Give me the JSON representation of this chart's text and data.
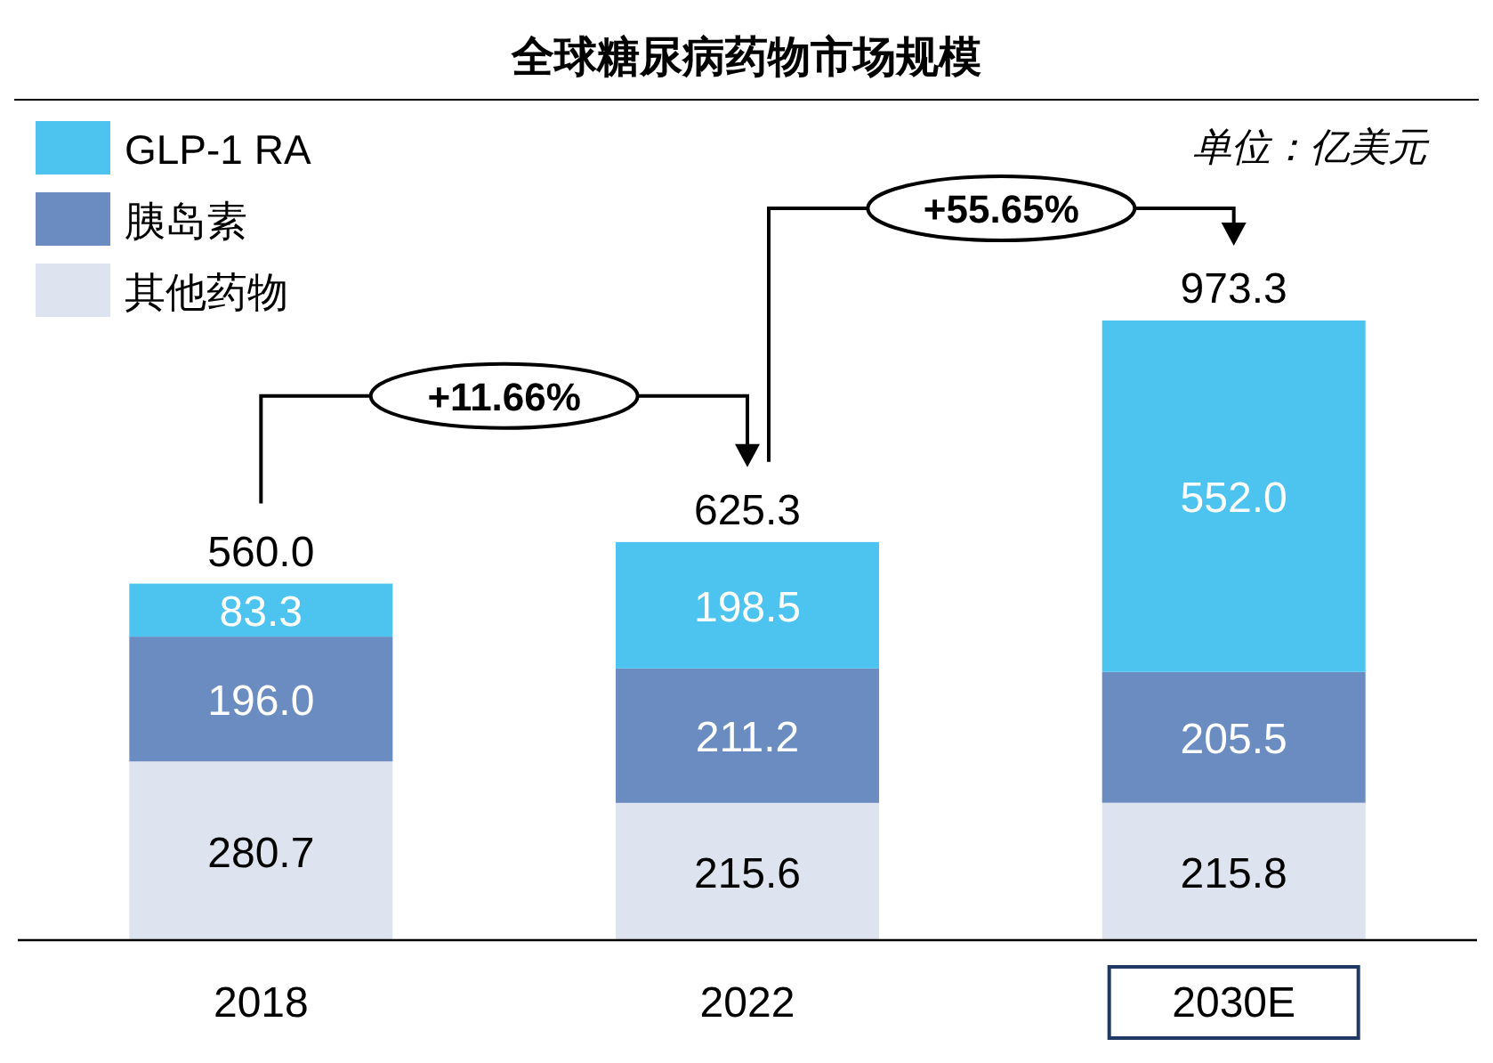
{
  "chart_data": {
    "type": "bar",
    "title": "全球糖尿病药物市场规模",
    "stacked": true,
    "legend": "top left",
    "categories": [
      "2018",
      "2022",
      "2030E"
    ],
    "series": [
      {
        "name": "其他药物",
        "color": "#dde3ef",
        "values": [
          280.7,
          215.6,
          215.8
        ],
        "value_labels": [
          "280.7",
          "215.6",
          "215.8"
        ]
      },
      {
        "name": "胰岛素",
        "color": "#6a8cc0",
        "values": [
          196.0,
          211.2,
          205.5
        ],
        "value_labels": [
          "196.0",
          "211.2",
          "205.5"
        ]
      },
      {
        "name": "GLP-1 RA",
        "color": "#4dc3ef",
        "values": [
          83.3,
          198.5,
          552.0
        ],
        "value_labels": [
          "83.3",
          "198.5",
          "552.0"
        ]
      }
    ],
    "totals": [
      "560.0",
      "625.3",
      "973.3"
    ],
    "annotations": [
      "单位：亿美元",
      "+11.66%",
      "+55.65%"
    ]
  }
}
